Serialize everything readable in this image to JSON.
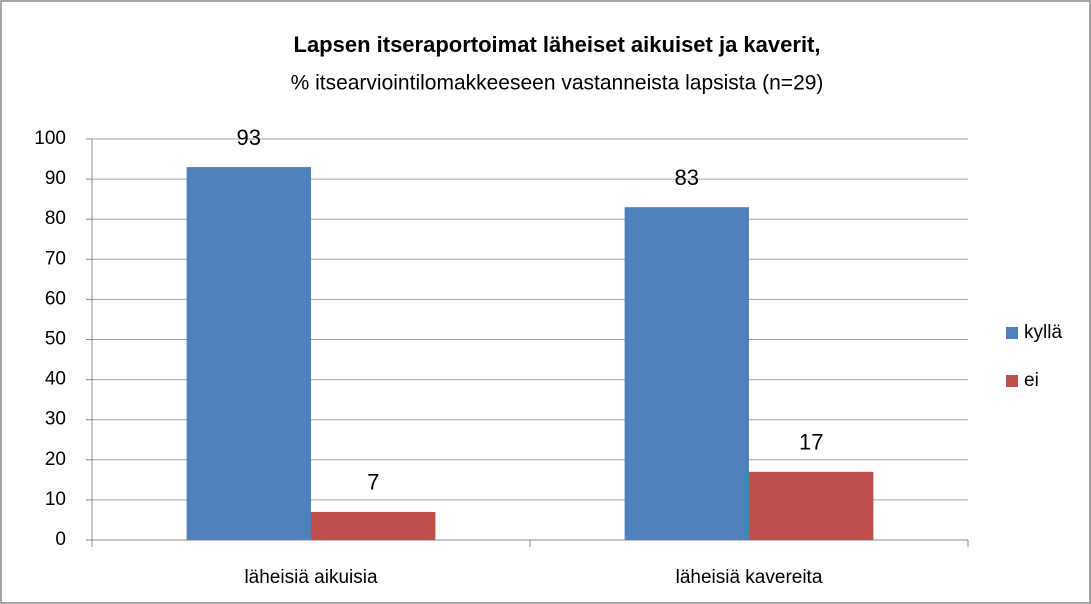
{
  "chart_data": {
    "type": "bar",
    "title": "Lapsen itseraportoimat läheiset aikuiset ja kaverit,",
    "subtitle": "% itsearviointilomakkeeseen vastanneista lapsista (n=29)",
    "categories": [
      "läheisiä aikuisia",
      "läheisiä kavereita"
    ],
    "series": [
      {
        "name": "kyllä",
        "color": "#4f81bd",
        "values": [
          93,
          83
        ]
      },
      {
        "name": "ei",
        "color": "#c0504d",
        "values": [
          7,
          17
        ]
      }
    ],
    "ylim": [
      0,
      100
    ],
    "yticks": [
      0,
      10,
      20,
      30,
      40,
      50,
      60,
      70,
      80,
      90,
      100
    ],
    "grid": true,
    "legend": "right"
  }
}
